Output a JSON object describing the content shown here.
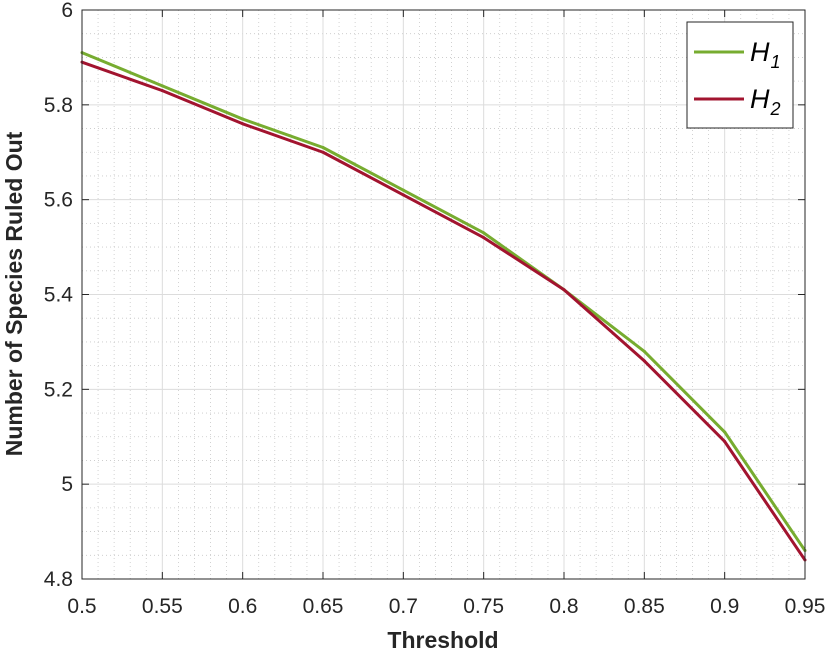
{
  "chart_data": {
    "type": "line",
    "xlabel": "Threshold",
    "ylabel": "Number of Species Ruled Out",
    "xlim": [
      0.5,
      0.95
    ],
    "ylim": [
      4.8,
      6.0
    ],
    "grid": true,
    "minor_grid": true,
    "legend_position": "top-right",
    "x": [
      0.5,
      0.55,
      0.6,
      0.65,
      0.7,
      0.75,
      0.8,
      0.85,
      0.9,
      0.95
    ],
    "x_ticks": [
      "0.5",
      "0.55",
      "0.6",
      "0.65",
      "0.7",
      "0.75",
      "0.8",
      "0.85",
      "0.9",
      "0.95"
    ],
    "y_ticks": [
      "4.8",
      "5",
      "5.2",
      "5.4",
      "5.6",
      "5.8",
      "6"
    ],
    "series": [
      {
        "name": "H",
        "subscript": "1",
        "color": "#77ac30",
        "values": [
          5.91,
          5.84,
          5.77,
          5.71,
          5.62,
          5.53,
          5.41,
          5.28,
          5.11,
          4.86
        ]
      },
      {
        "name": "H",
        "subscript": "2",
        "color": "#a2142f",
        "values": [
          5.89,
          5.83,
          5.76,
          5.7,
          5.61,
          5.52,
          5.41,
          5.26,
          5.09,
          4.84
        ]
      }
    ]
  }
}
